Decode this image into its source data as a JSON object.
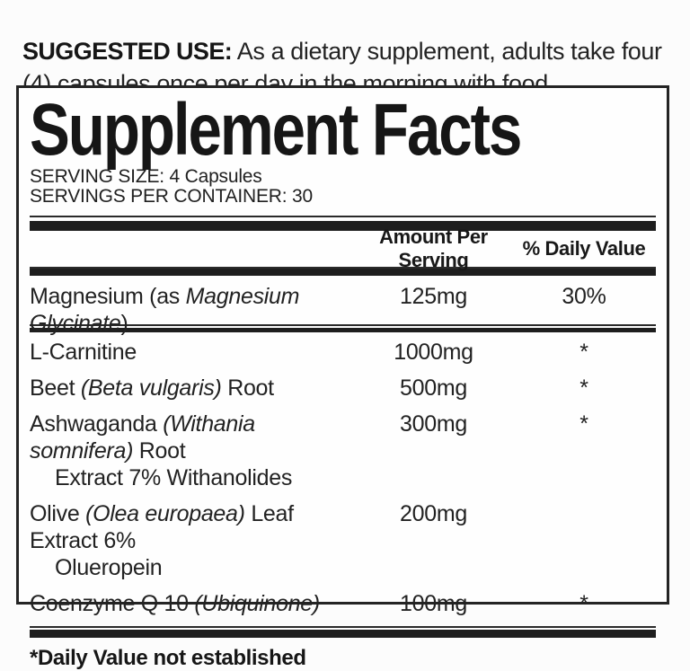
{
  "suggested_use": {
    "label": "SUGGESTED USE:",
    "text": " As a dietary supplement, adults take four (4) capsules once per day in the morning with food."
  },
  "panel": {
    "title": "Supplement Facts",
    "serving_size": "SERVING SIZE: 4 Capsules",
    "servings_per_container": "SERVINGS PER CONTAINER: 30",
    "columns": {
      "amount": "Amount Per Serving",
      "daily_value": "% Daily Value"
    },
    "rows": [
      {
        "name": [
          {
            "text": "Magnesium (as ",
            "italic": false
          },
          {
            "text": "Magnesium Glycinate",
            "italic": true
          },
          {
            "text": ")",
            "italic": false
          }
        ],
        "amount": "125mg",
        "daily_value": "30%"
      },
      {
        "name": [
          {
            "text": "L-Carnitine",
            "italic": false
          }
        ],
        "amount": "1000mg",
        "daily_value": "*"
      },
      {
        "name": [
          {
            "text": "Beet ",
            "italic": false
          },
          {
            "text": "(Beta vulgaris)",
            "italic": true
          },
          {
            "text": " Root",
            "italic": false
          }
        ],
        "amount": "500mg",
        "daily_value": "*"
      },
      {
        "name": [
          {
            "text": "Ashwaganda ",
            "italic": false
          },
          {
            "text": "(Withania somnifera)",
            "italic": true
          },
          {
            "text": " Root",
            "italic": false
          }
        ],
        "name_line2": "Extract 7% Withanolides",
        "amount": "300mg",
        "daily_value": "*"
      },
      {
        "name": [
          {
            "text": "Olive ",
            "italic": false
          },
          {
            "text": "(Olea europaea)",
            "italic": true
          },
          {
            "text": " Leaf Extract 6%",
            "italic": false
          }
        ],
        "name_line2": "Olueropein",
        "amount": "200mg",
        "daily_value": ""
      },
      {
        "name": [
          {
            "text": "Coenzyme Q 10 ",
            "italic": false
          },
          {
            "text": "(Ubiquinone)",
            "italic": true
          }
        ],
        "amount": "100mg",
        "daily_value": "*"
      }
    ],
    "footnote": "*Daily Value not established"
  }
}
